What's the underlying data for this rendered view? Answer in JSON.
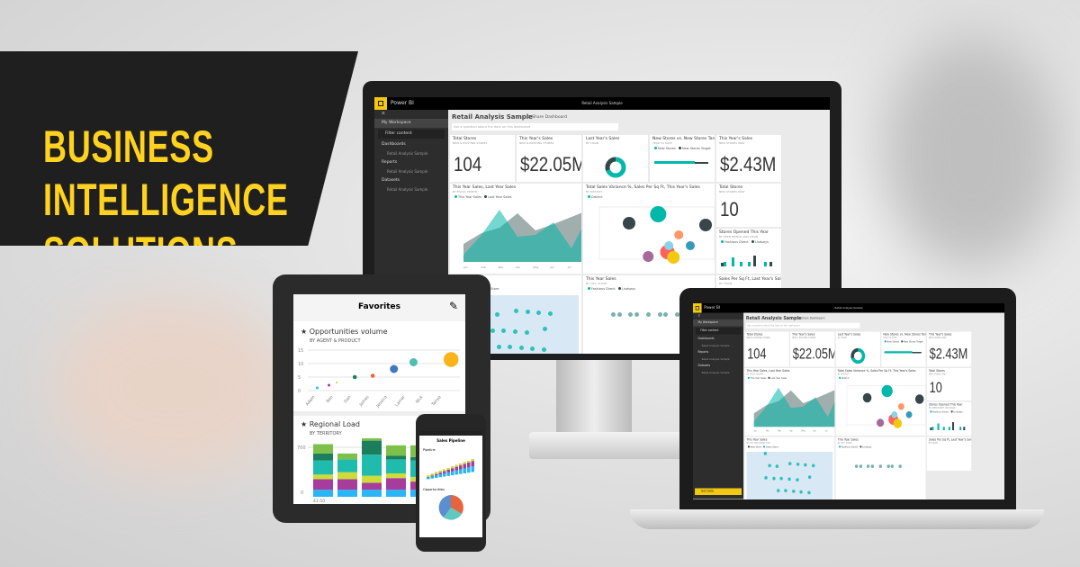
{
  "banner": {
    "lines": [
      "BUSINESS",
      "INTELLIGENCE",
      "SOLUTIONS"
    ]
  },
  "colors": {
    "accent": "#ffd21f",
    "teal": "#01b8aa",
    "dark": "#374649",
    "yellow": "#f2c811"
  },
  "dashboard": {
    "app_name": "Power BI",
    "window_title": "Retail Analysis Sample",
    "title": "Retail Analysis Sample",
    "share": "Share Dashboard",
    "qa_placeholder": "Ask a question about the data on this dashboard",
    "sidebar": [
      "My Workspace",
      "Filter content",
      "Dashboards",
      "Retail Analysis Sample",
      "Reports",
      "Retail Analysis Sample",
      "Datasets",
      "Retail Analysis Sample"
    ],
    "get_data": "Get Data",
    "tiles": [
      {
        "title": "Total Stores",
        "sub": "NEW & EXISTING STORES",
        "value": "104"
      },
      {
        "title": "This Year's Sales",
        "sub": "NEW & EXISTING STORES",
        "value": "$22.05M"
      },
      {
        "title": "Last Year's Sales",
        "sub": "BY CHAIN"
      },
      {
        "title": "New Stores vs. New Stores Target",
        "sub": "YEAR TO DATE",
        "legend": [
          "New Stores",
          "New Stores Target"
        ]
      },
      {
        "title": "This Year's Sales",
        "sub": "NEW STORES ONLY",
        "value": "$2.43M"
      },
      {
        "title": "This Year Sales, Last Year Sales",
        "sub": "BY FISCAL MONTH",
        "legend": [
          "This Year Sales",
          "Last Year Sales"
        ],
        "months": [
          "Jan",
          "Feb",
          "Mar",
          "Apr",
          "May",
          "Jun",
          "Jul",
          "Aug"
        ]
      },
      {
        "title": "Total Sales Variance %, Sales Per Sq Ft, This Year's Sales",
        "sub": "BY DISTRICT",
        "legend": [
          "District"
        ]
      },
      {
        "title": "Total Stores",
        "sub": "NEW STORES ONLY",
        "value": "10"
      },
      {
        "title": "Stores Opened This Year",
        "sub": "BY OPEN MONTH AND CHAIN",
        "legend": [
          "Fashions Direct",
          "Lindseys"
        ]
      },
      {
        "title": "This Year Sales",
        "sub": "BY CITY AND STORE TYPE",
        "legend": [
          "New Store",
          "Same Store"
        ]
      },
      {
        "title": "This Year Sales",
        "sub": "BY CITY, CHAIN",
        "legend": [
          "Fashions Direct",
          "Lindseys"
        ]
      },
      {
        "title": "Sales Per Sq Ft, Last Year's Sales",
        "sub": "BY CHAIN"
      }
    ]
  },
  "tablet": {
    "header": "Favorites",
    "card1_title": "Opportunities volume",
    "card1_sub": "BY AGENT & PRODUCT",
    "card1_yticks": [
      "15",
      "10",
      "5",
      "0"
    ],
    "card1_x": [
      "Adam",
      "Ben",
      "Dan",
      "James",
      "Jessica",
      "Lamar",
      "Nick",
      "Tanya"
    ],
    "card2_title": "Regional Load",
    "card2_sub": "BY TERRITORY",
    "card2_yticks": [
      "700",
      "0"
    ],
    "card2_x": "41-50"
  },
  "phone": {
    "title": "Sales Pipeline",
    "section1": "Pipeline",
    "section2": "Opportunities"
  }
}
